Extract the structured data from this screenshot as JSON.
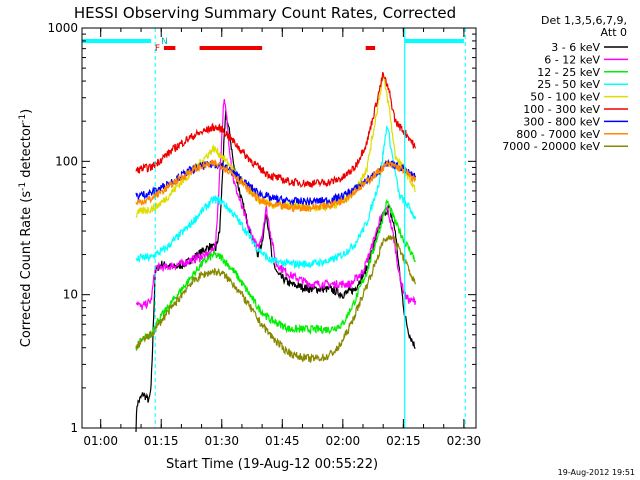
{
  "chart_data": {
    "type": "line",
    "title": "HESSI Observing Summary Count Rates, Corrected",
    "xlabel": "Start Time (19-Aug-12 00:55:22)",
    "ylabel_main": "Corrected Count Rate (s",
    "ylabel_sup1": "-1",
    "ylabel_mid": " detector",
    "ylabel_sup2": "-1",
    "ylabel_end": ")",
    "timestamp": "19-Aug-2012 19:51",
    "y_scale": "log",
    "ylim": [
      1,
      1000
    ],
    "xlim": [
      "00:55:22",
      "02:33:00"
    ],
    "x_ticks": [
      "01:00",
      "01:15",
      "01:30",
      "01:45",
      "02:00",
      "02:15",
      "02:30"
    ],
    "y_ticks": [
      "1",
      "10",
      "100",
      "1000"
    ],
    "legend": {
      "placement": "right",
      "header_line1": "Det 1,3,5,6,7,9,",
      "header_line2": "Att 0",
      "entries": [
        {
          "label": "3 - 6 keV",
          "color": "#000000"
        },
        {
          "label": "6 - 12 keV",
          "color": "#ff00ff"
        },
        {
          "label": "12 - 25 keV",
          "color": "#00ee00"
        },
        {
          "label": "25 - 50 keV",
          "color": "#00ffff"
        },
        {
          "label": "50 - 100 keV",
          "color": "#dddd00"
        },
        {
          "label": "100 - 300 keV",
          "color": "#ee0000"
        },
        {
          "label": "300 - 800 keV",
          "color": "#0000ff"
        },
        {
          "label": "800 - 7000 keV",
          "color": "#ff8800"
        },
        {
          "label": "7000 - 20000 keV",
          "color": "#888800"
        }
      ]
    },
    "flags": {
      "N_label": "N",
      "F_label": "F",
      "night_bars": [
        [
          "00:55:22",
          "01:12:30"
        ],
        [
          "02:15:20",
          "02:30:00"
        ]
      ],
      "flare_bars": [
        [
          "01:15:40",
          "01:18:30"
        ],
        [
          "01:24:30",
          "01:40:00"
        ],
        [
          "02:05:40",
          "02:08:00"
        ]
      ],
      "day_start_line": "01:13:30",
      "day_end_line": "02:15:20",
      "day_end_dashed_line": "02:30:20"
    },
    "series": [
      {
        "name": "3 - 6 keV",
        "color": "#000000",
        "points": [
          [
            "01:08:45",
            1
          ],
          [
            "01:09:00",
            1.5
          ],
          [
            "01:10:30",
            1.8
          ],
          [
            "01:12:00",
            1.6
          ],
          [
            "01:12:30",
            2
          ],
          [
            "01:13:30",
            15
          ],
          [
            "01:15:00",
            17
          ],
          [
            "01:18:00",
            16
          ],
          [
            "01:21:00",
            17
          ],
          [
            "01:24:00",
            20
          ],
          [
            "01:27:00",
            23
          ],
          [
            "01:28:30",
            22
          ],
          [
            "01:29:30",
            30
          ],
          [
            "01:30:30",
            130
          ],
          [
            "01:31:00",
            230
          ],
          [
            "01:32:00",
            160
          ],
          [
            "01:33:00",
            90
          ],
          [
            "01:35:00",
            50
          ],
          [
            "01:37:00",
            30
          ],
          [
            "01:39:00",
            20
          ],
          [
            "01:40:00",
            25
          ],
          [
            "01:41:00",
            40
          ],
          [
            "01:41:45",
            30
          ],
          [
            "01:42:30",
            18
          ],
          [
            "01:44:00",
            14
          ],
          [
            "01:47:00",
            12
          ],
          [
            "01:52:00",
            11
          ],
          [
            "01:57:00",
            11
          ],
          [
            "02:00:00",
            10
          ],
          [
            "02:03:00",
            11
          ],
          [
            "02:06:00",
            16
          ],
          [
            "02:08:00",
            25
          ],
          [
            "02:10:00",
            40
          ],
          [
            "02:11:30",
            45
          ],
          [
            "02:13:00",
            30
          ],
          [
            "02:14:00",
            15
          ],
          [
            "02:15:20",
            7
          ],
          [
            "02:16:30",
            5
          ],
          [
            "02:18:00",
            4
          ]
        ]
      },
      {
        "name": "6 - 12 keV",
        "color": "#ff00ff",
        "points": [
          [
            "01:08:45",
            9
          ],
          [
            "01:10:00",
            8
          ],
          [
            "01:12:30",
            9
          ],
          [
            "01:13:30",
            16
          ],
          [
            "01:16:00",
            16
          ],
          [
            "01:20:00",
            17
          ],
          [
            "01:24:00",
            19
          ],
          [
            "01:27:00",
            20
          ],
          [
            "01:28:30",
            24
          ],
          [
            "01:29:30",
            80
          ],
          [
            "01:30:30",
            290
          ],
          [
            "01:31:00",
            240
          ],
          [
            "01:32:00",
            120
          ],
          [
            "01:33:00",
            70
          ],
          [
            "01:35:00",
            45
          ],
          [
            "01:37:00",
            30
          ],
          [
            "01:39:00",
            22
          ],
          [
            "01:40:00",
            28
          ],
          [
            "01:41:00",
            45
          ],
          [
            "01:42:00",
            30
          ],
          [
            "01:43:30",
            17
          ],
          [
            "01:47:00",
            14
          ],
          [
            "01:52:00",
            12
          ],
          [
            "01:57:00",
            12
          ],
          [
            "02:02:00",
            12
          ],
          [
            "02:05:00",
            15
          ],
          [
            "02:07:00",
            22
          ],
          [
            "02:09:00",
            35
          ],
          [
            "02:11:00",
            45
          ],
          [
            "02:12:30",
            28
          ],
          [
            "02:14:00",
            14
          ],
          [
            "02:15:20",
            10
          ],
          [
            "02:16:30",
            9
          ],
          [
            "02:18:00",
            9
          ]
        ]
      },
      {
        "name": "12 - 25 keV",
        "color": "#00ee00",
        "points": [
          [
            "01:08:45",
            4
          ],
          [
            "01:10:00",
            4.5
          ],
          [
            "01:12:30",
            5
          ],
          [
            "01:13:30",
            6
          ],
          [
            "01:16:00",
            7.5
          ],
          [
            "01:19:00",
            10
          ],
          [
            "01:22:00",
            13
          ],
          [
            "01:25:00",
            17
          ],
          [
            "01:28:00",
            20
          ],
          [
            "01:30:00",
            19
          ],
          [
            "01:33:00",
            15
          ],
          [
            "01:36:00",
            11
          ],
          [
            "01:39:00",
            8
          ],
          [
            "01:42:00",
            6.5
          ],
          [
            "01:47:00",
            5.5
          ],
          [
            "01:52:00",
            5.5
          ],
          [
            "01:57:00",
            5.5
          ],
          [
            "02:00:00",
            6
          ],
          [
            "02:03:00",
            9
          ],
          [
            "02:06:00",
            15
          ],
          [
            "02:09:00",
            30
          ],
          [
            "02:11:00",
            50
          ],
          [
            "02:13:00",
            35
          ],
          [
            "02:15:20",
            25
          ],
          [
            "02:16:30",
            22
          ],
          [
            "02:18:00",
            18
          ]
        ]
      },
      {
        "name": "25 - 50 keV",
        "color": "#00ffff",
        "points": [
          [
            "01:08:45",
            18
          ],
          [
            "01:10:00",
            19
          ],
          [
            "01:12:30",
            19
          ],
          [
            "01:13:30",
            20
          ],
          [
            "01:16:00",
            22
          ],
          [
            "01:19:00",
            27
          ],
          [
            "01:22:00",
            33
          ],
          [
            "01:25:00",
            42
          ],
          [
            "01:28:00",
            52
          ],
          [
            "01:30:00",
            50
          ],
          [
            "01:33:00",
            40
          ],
          [
            "01:36:00",
            30
          ],
          [
            "01:39:00",
            22
          ],
          [
            "01:42:00",
            18
          ],
          [
            "01:47:00",
            17
          ],
          [
            "01:52:00",
            17
          ],
          [
            "01:57:00",
            18
          ],
          [
            "02:00:00",
            20
          ],
          [
            "02:03:00",
            24
          ],
          [
            "02:06:00",
            35
          ],
          [
            "02:09:00",
            70
          ],
          [
            "02:11:00",
            190
          ],
          [
            "02:12:30",
            100
          ],
          [
            "02:14:00",
            55
          ],
          [
            "02:15:20",
            50
          ],
          [
            "02:16:30",
            45
          ],
          [
            "02:18:00",
            37
          ]
        ]
      },
      {
        "name": "50 - 100 keV",
        "color": "#dddd00",
        "points": [
          [
            "01:08:45",
            40
          ],
          [
            "01:10:00",
            42
          ],
          [
            "01:12:30",
            44
          ],
          [
            "01:13:30",
            45
          ],
          [
            "01:16:00",
            52
          ],
          [
            "01:19:00",
            65
          ],
          [
            "01:22:00",
            80
          ],
          [
            "01:25:00",
            100
          ],
          [
            "01:28:00",
            125
          ],
          [
            "01:30:00",
            110
          ],
          [
            "01:33:00",
            85
          ],
          [
            "01:36:00",
            65
          ],
          [
            "01:39:00",
            52
          ],
          [
            "01:42:00",
            47
          ],
          [
            "01:47:00",
            46
          ],
          [
            "01:52:00",
            45
          ],
          [
            "01:57:00",
            46
          ],
          [
            "02:00:00",
            50
          ],
          [
            "02:03:00",
            60
          ],
          [
            "02:06:00",
            90
          ],
          [
            "02:08:00",
            200
          ],
          [
            "02:10:00",
            440
          ],
          [
            "02:11:30",
            250
          ],
          [
            "02:13:00",
            110
          ],
          [
            "02:15:20",
            85
          ],
          [
            "02:16:30",
            75
          ],
          [
            "02:18:00",
            60
          ]
        ]
      },
      {
        "name": "100 - 300 keV",
        "color": "#ee0000",
        "points": [
          [
            "01:08:45",
            85
          ],
          [
            "01:10:00",
            88
          ],
          [
            "01:12:30",
            90
          ],
          [
            "01:13:30",
            95
          ],
          [
            "01:16:00",
            110
          ],
          [
            "01:19:00",
            130
          ],
          [
            "01:22:00",
            150
          ],
          [
            "01:25:00",
            165
          ],
          [
            "01:28:00",
            180
          ],
          [
            "01:30:00",
            175
          ],
          [
            "01:33:00",
            140
          ],
          [
            "01:36:00",
            110
          ],
          [
            "01:39:00",
            90
          ],
          [
            "01:42:00",
            78
          ],
          [
            "01:47:00",
            70
          ],
          [
            "01:52:00",
            68
          ],
          [
            "01:57:00",
            70
          ],
          [
            "02:00:00",
            75
          ],
          [
            "02:03:00",
            90
          ],
          [
            "02:06:00",
            140
          ],
          [
            "02:08:00",
            250
          ],
          [
            "02:10:00",
            450
          ],
          [
            "02:11:30",
            330
          ],
          [
            "02:13:00",
            200
          ],
          [
            "02:15:20",
            165
          ],
          [
            "02:16:30",
            150
          ],
          [
            "02:18:00",
            125
          ]
        ]
      },
      {
        "name": "300 - 800 keV",
        "color": "#0000ff",
        "points": [
          [
            "01:08:45",
            55
          ],
          [
            "01:10:00",
            56
          ],
          [
            "01:12:30",
            58
          ],
          [
            "01:13:30",
            60
          ],
          [
            "01:16:00",
            66
          ],
          [
            "01:19:00",
            75
          ],
          [
            "01:22:00",
            85
          ],
          [
            "01:25:00",
            92
          ],
          [
            "01:28:00",
            95
          ],
          [
            "01:30:00",
            93
          ],
          [
            "01:33:00",
            82
          ],
          [
            "01:36:00",
            68
          ],
          [
            "01:39:00",
            58
          ],
          [
            "01:42:00",
            53
          ],
          [
            "01:47:00",
            50
          ],
          [
            "01:52:00",
            50
          ],
          [
            "01:57:00",
            51
          ],
          [
            "02:00:00",
            55
          ],
          [
            "02:03:00",
            62
          ],
          [
            "02:06:00",
            72
          ],
          [
            "02:09:00",
            85
          ],
          [
            "02:11:00",
            95
          ],
          [
            "02:13:00",
            93
          ],
          [
            "02:15:20",
            88
          ],
          [
            "02:16:30",
            82
          ],
          [
            "02:18:00",
            78
          ]
        ]
      },
      {
        "name": "800 - 7000 keV",
        "color": "#ff8800",
        "points": [
          [
            "01:08:45",
            48
          ],
          [
            "01:10:00",
            50
          ],
          [
            "01:12:30",
            52
          ],
          [
            "01:13:30",
            55
          ],
          [
            "01:16:00",
            62
          ],
          [
            "01:19:00",
            72
          ],
          [
            "01:22:00",
            83
          ],
          [
            "01:25:00",
            92
          ],
          [
            "01:28:00",
            96
          ],
          [
            "01:30:00",
            93
          ],
          [
            "01:33:00",
            80
          ],
          [
            "01:36:00",
            64
          ],
          [
            "01:39:00",
            52
          ],
          [
            "01:42:00",
            47
          ],
          [
            "01:47:00",
            45
          ],
          [
            "01:52:00",
            45
          ],
          [
            "01:57:00",
            47
          ],
          [
            "02:00:00",
            51
          ],
          [
            "02:03:00",
            60
          ],
          [
            "02:06:00",
            70
          ],
          [
            "02:09:00",
            85
          ],
          [
            "02:11:00",
            95
          ],
          [
            "02:13:00",
            92
          ],
          [
            "02:15:20",
            85
          ],
          [
            "02:16:30",
            78
          ],
          [
            "02:18:00",
            72
          ]
        ]
      },
      {
        "name": "7000 - 20000 keV",
        "color": "#888800",
        "points": [
          [
            "01:08:45",
            4
          ],
          [
            "01:10:00",
            4.5
          ],
          [
            "01:12:30",
            5
          ],
          [
            "01:13:30",
            5.5
          ],
          [
            "01:16:00",
            7
          ],
          [
            "01:19:00",
            9
          ],
          [
            "01:22:00",
            12
          ],
          [
            "01:25:00",
            14
          ],
          [
            "01:28:00",
            15
          ],
          [
            "01:30:00",
            14.5
          ],
          [
            "01:33:00",
            12
          ],
          [
            "01:36:00",
            9
          ],
          [
            "01:39:00",
            6.5
          ],
          [
            "01:42:00",
            5
          ],
          [
            "01:45:00",
            4
          ],
          [
            "01:48:00",
            3.5
          ],
          [
            "01:52:00",
            3.3
          ],
          [
            "01:56:00",
            3.4
          ],
          [
            "01:59:00",
            4
          ],
          [
            "02:02:00",
            6
          ],
          [
            "02:05:00",
            10
          ],
          [
            "02:08:00",
            17
          ],
          [
            "02:10:00",
            25
          ],
          [
            "02:12:00",
            28
          ],
          [
            "02:14:00",
            22
          ],
          [
            "02:15:20",
            18
          ],
          [
            "02:16:30",
            15
          ],
          [
            "02:18:00",
            12
          ]
        ]
      }
    ]
  }
}
